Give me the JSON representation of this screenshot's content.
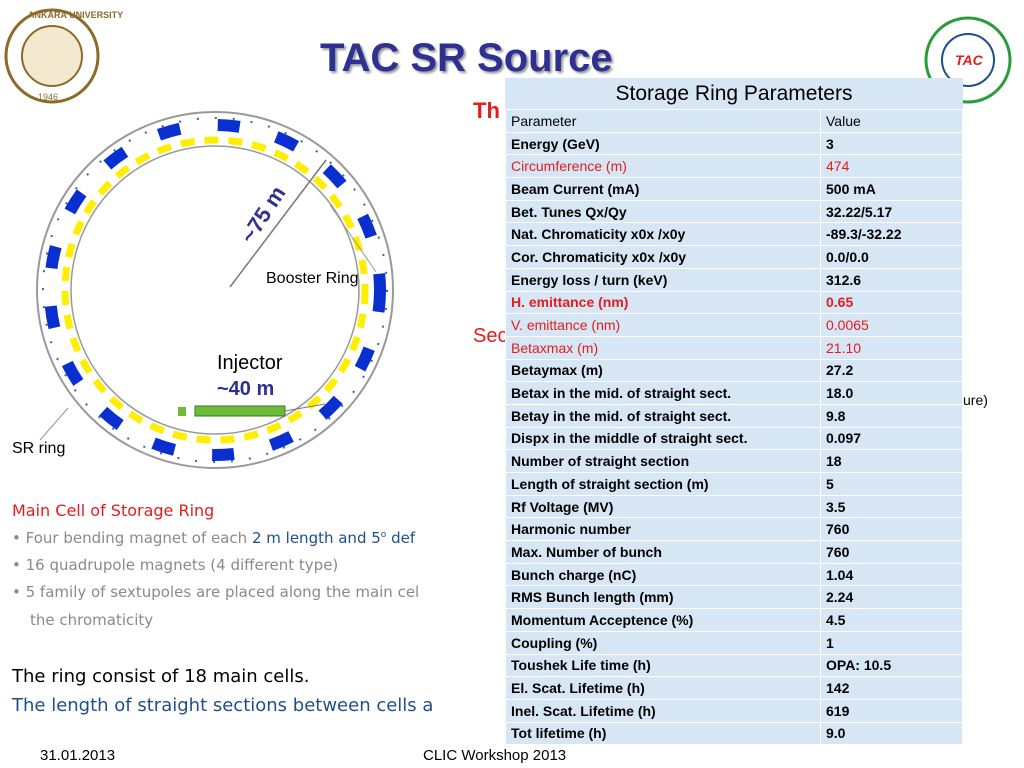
{
  "header": {
    "title": "TAC SR Source",
    "logo_left": {
      "name": "ANKARA UNIVERSITY",
      "year": "1946"
    },
    "logo_right": "TAC"
  },
  "diagram": {
    "labels": [
      "~75 m",
      "Booster Ring",
      "Injector",
      "~40 m",
      "SR ring"
    ]
  },
  "hidden_fragments": [
    "Th",
    "Sec",
    "ure)"
  ],
  "table": {
    "title": "Storage Ring Parameters",
    "columns": [
      "Parameter",
      "Value"
    ],
    "rows": [
      [
        "Energy (GeV)",
        "3"
      ],
      [
        "Circumference (m)",
        "474"
      ],
      [
        "Beam Current (mA)",
        "500 mA"
      ],
      [
        "Bet. Tunes Qx/Qy",
        "32.22/5.17"
      ],
      [
        "Nat. Chromaticity x0x /x0y",
        "-89.3/-32.22"
      ],
      [
        "Cor.  Chromaticity x0x /x0y",
        "0.0/0.0"
      ],
      [
        "Energy loss / turn (keV)",
        "312.6"
      ],
      [
        "H. emittance (nm)",
        "0.65"
      ],
      [
        "V. emittance (nm)",
        "0.0065"
      ],
      [
        "Betaxmax (m)",
        "21.10"
      ],
      [
        "Betaymax (m)",
        "27.2"
      ],
      [
        "Betax in the mid. of straight sect.",
        "18.0"
      ],
      [
        "Betay in the mid. of straight sect.",
        "9.8"
      ],
      [
        "Dispx in the middle of straight sect.",
        "0.097"
      ],
      [
        "Number of straight section",
        "18"
      ],
      [
        "Length of straight section (m)",
        "5"
      ],
      [
        "Rf Voltage (MV)",
        "3.5"
      ],
      [
        "Harmonic number",
        "760"
      ],
      [
        "Max. Number of bunch",
        "760"
      ],
      [
        "Bunch charge (nC)",
        "1.04"
      ],
      [
        "RMS Bunch length (mm)",
        "2.24"
      ],
      [
        "Momentum Acceptence (%)",
        "4.5"
      ],
      [
        "Coupling (%)",
        "1"
      ],
      [
        "Toushek Life time (h)",
        "OPA: 10.5"
      ],
      [
        "El. Scat. Lifetime (h)",
        "142"
      ],
      [
        "Inel. Scat. Lifetime (h)",
        "619"
      ],
      [
        "Tot lifetime (h)",
        "9.0"
      ]
    ]
  },
  "body": {
    "heading": "Main Cell of Storage Ring",
    "bullets": [
      {
        "parts": [
          "Four bending magnet of each ",
          "2 m length and 5",
          "o",
          " def"
        ]
      },
      {
        "parts": [
          "16 quadrupole magnets (4 different type)"
        ]
      },
      {
        "parts": [
          "5 family of sextupoles are placed along the main cel",
          "the chromaticity"
        ]
      }
    ],
    "line1": "The ring consist of 18 main cells.",
    "line2": "The length  of straight sections between  cells a"
  },
  "footer": {
    "date": "31.01.2013",
    "event": "CLIC Workshop 2013"
  }
}
